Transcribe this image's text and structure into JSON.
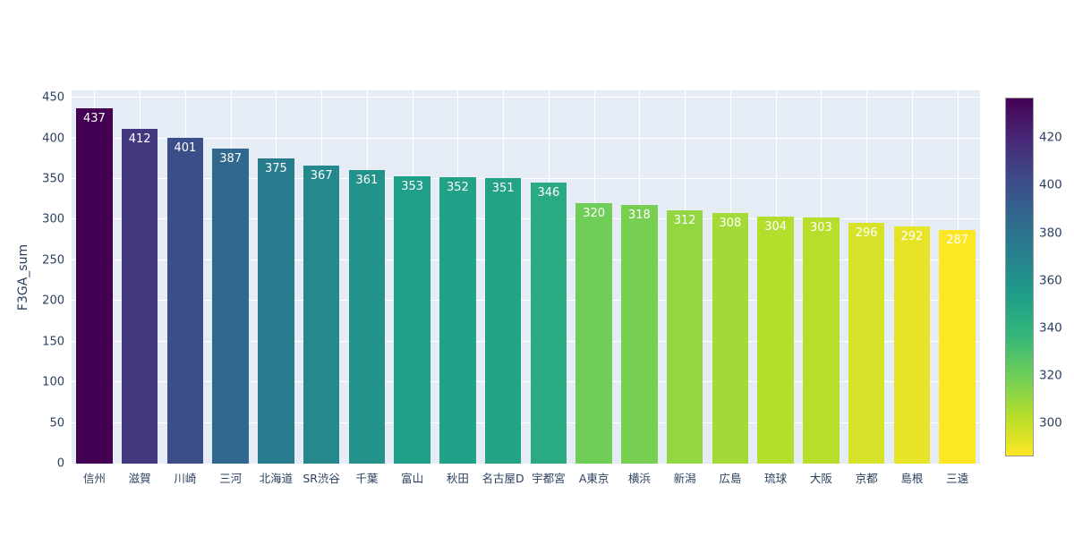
{
  "chart_data": {
    "type": "bar",
    "title": "",
    "xlabel": "",
    "ylabel": "F3GA_sum",
    "categories": [
      "信州",
      "滋賀",
      "川崎",
      "三河",
      "北海道",
      "SR渋谷",
      "千葉",
      "富山",
      "秋田",
      "名古屋D",
      "宇都宮",
      "A東京",
      "横浜",
      "新潟",
      "広島",
      "琉球",
      "大阪",
      "京都",
      "島根",
      "三遠"
    ],
    "values": [
      437,
      412,
      401,
      387,
      375,
      367,
      361,
      353,
      352,
      351,
      346,
      320,
      318,
      312,
      308,
      304,
      303,
      296,
      292,
      287
    ],
    "bar_value_labels_shown_inside": true,
    "ylim": [
      0,
      459
    ],
    "yticks": [
      0,
      50,
      100,
      150,
      200,
      250,
      300,
      350,
      400,
      450
    ],
    "grid": true,
    "legend_position": "colorbar-right",
    "colorbar": {
      "cmin": 287,
      "cmax": 437,
      "ticks": [
        420,
        400,
        380,
        360,
        340,
        320,
        300
      ],
      "orientation": "vertical",
      "high_color_at_top": true
    },
    "colorscale": {
      "name": "viridis (high value = dark purple, low value = yellow)",
      "stops_low_to_high_t": [
        "#440154",
        "#482878",
        "#3e4989",
        "#31688e",
        "#26828e",
        "#1f9e89",
        "#35b779",
        "#6ece58",
        "#b5de2b",
        "#fde725"
      ]
    },
    "colors": {
      "figure_background": "#ffffff",
      "plot_background": "#e5ecf6",
      "gridline": "#ffffff",
      "tick_text": "#2a3f5f",
      "bar_label_text": "#ffffff",
      "colorbar_outline": "#999999"
    }
  }
}
